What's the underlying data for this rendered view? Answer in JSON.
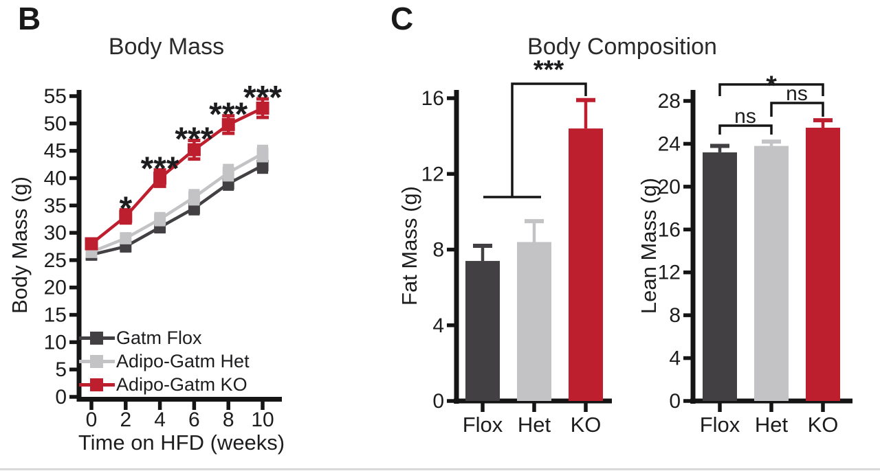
{
  "figure": {
    "panels": [
      {
        "letter": "B",
        "title": "Body Mass"
      },
      {
        "letter": "C",
        "title": "Body Composition"
      }
    ]
  },
  "colors": {
    "flox": "#424043",
    "het": "#C3C3C6",
    "ko": "#BE1F2E",
    "axis": "#151515",
    "text": "#1d1d1f",
    "divider": "#d9d9d9"
  },
  "chart_data": [
    {
      "id": "body-mass",
      "type": "line",
      "title": "Body Mass",
      "xlabel": "Time on HFD (weeks)",
      "ylabel": "Body Mass (g)",
      "x": [
        0,
        2,
        4,
        6,
        8,
        10
      ],
      "xticks": [
        0,
        2,
        4,
        6,
        8,
        10
      ],
      "yticks": [
        0,
        5,
        10,
        15,
        20,
        25,
        30,
        35,
        40,
        45,
        50,
        55
      ],
      "ylim": [
        0,
        55
      ],
      "grid": false,
      "legend_position": "inside-bottom-left",
      "series": [
        {
          "name": "Gatm Flox",
          "color_key": "flox",
          "values": [
            26.0,
            27.5,
            31.0,
            34.5,
            39.0,
            42.3
          ],
          "errors": [
            0.8,
            0.8,
            0.8,
            1.0,
            1.0,
            1.2
          ]
        },
        {
          "name": "Adipo-Gatm Het",
          "color_key": "het",
          "values": [
            26.5,
            29.0,
            32.5,
            36.5,
            41.0,
            44.5
          ],
          "errors": [
            0.8,
            0.8,
            1.0,
            1.2,
            1.3,
            1.3
          ]
        },
        {
          "name": "Adipo-Gatm KO",
          "color_key": "ko",
          "values": [
            28.0,
            33.0,
            40.0,
            45.2,
            49.8,
            52.8
          ],
          "errors": [
            0.7,
            1.2,
            1.5,
            1.7,
            1.6,
            1.7
          ]
        }
      ],
      "significance_by_x": [
        "",
        "*",
        "***",
        "***",
        "***",
        "***"
      ]
    },
    {
      "id": "fat-mass",
      "type": "bar",
      "group_title": "Body Composition",
      "ylabel": "Fat Mass (g)",
      "categories": [
        "Flox",
        "Het",
        "KO"
      ],
      "values": [
        7.4,
        8.4,
        14.4
      ],
      "errors": [
        0.8,
        1.1,
        1.5
      ],
      "color_keys": [
        "flox",
        "het",
        "ko"
      ],
      "yticks": [
        0,
        4,
        8,
        12,
        16
      ],
      "ylim": [
        0,
        16
      ],
      "grid": false,
      "significance": [
        {
          "compare": "Flox+Het vs KO",
          "label": "***"
        }
      ]
    },
    {
      "id": "lean-mass",
      "type": "bar",
      "ylabel": "Lean Mass (g)",
      "categories": [
        "Flox",
        "Het",
        "KO"
      ],
      "values": [
        23.2,
        23.8,
        25.5
      ],
      "errors": [
        0.6,
        0.4,
        0.7
      ],
      "color_keys": [
        "flox",
        "het",
        "ko"
      ],
      "yticks": [
        0,
        4,
        8,
        12,
        16,
        20,
        24,
        28
      ],
      "ylim": [
        0,
        28
      ],
      "grid": false,
      "significance": [
        {
          "compare": "Flox vs Het",
          "label": "ns"
        },
        {
          "compare": "Het vs KO",
          "label": "ns"
        },
        {
          "compare": "Flox vs KO",
          "label": "*"
        }
      ]
    }
  ]
}
